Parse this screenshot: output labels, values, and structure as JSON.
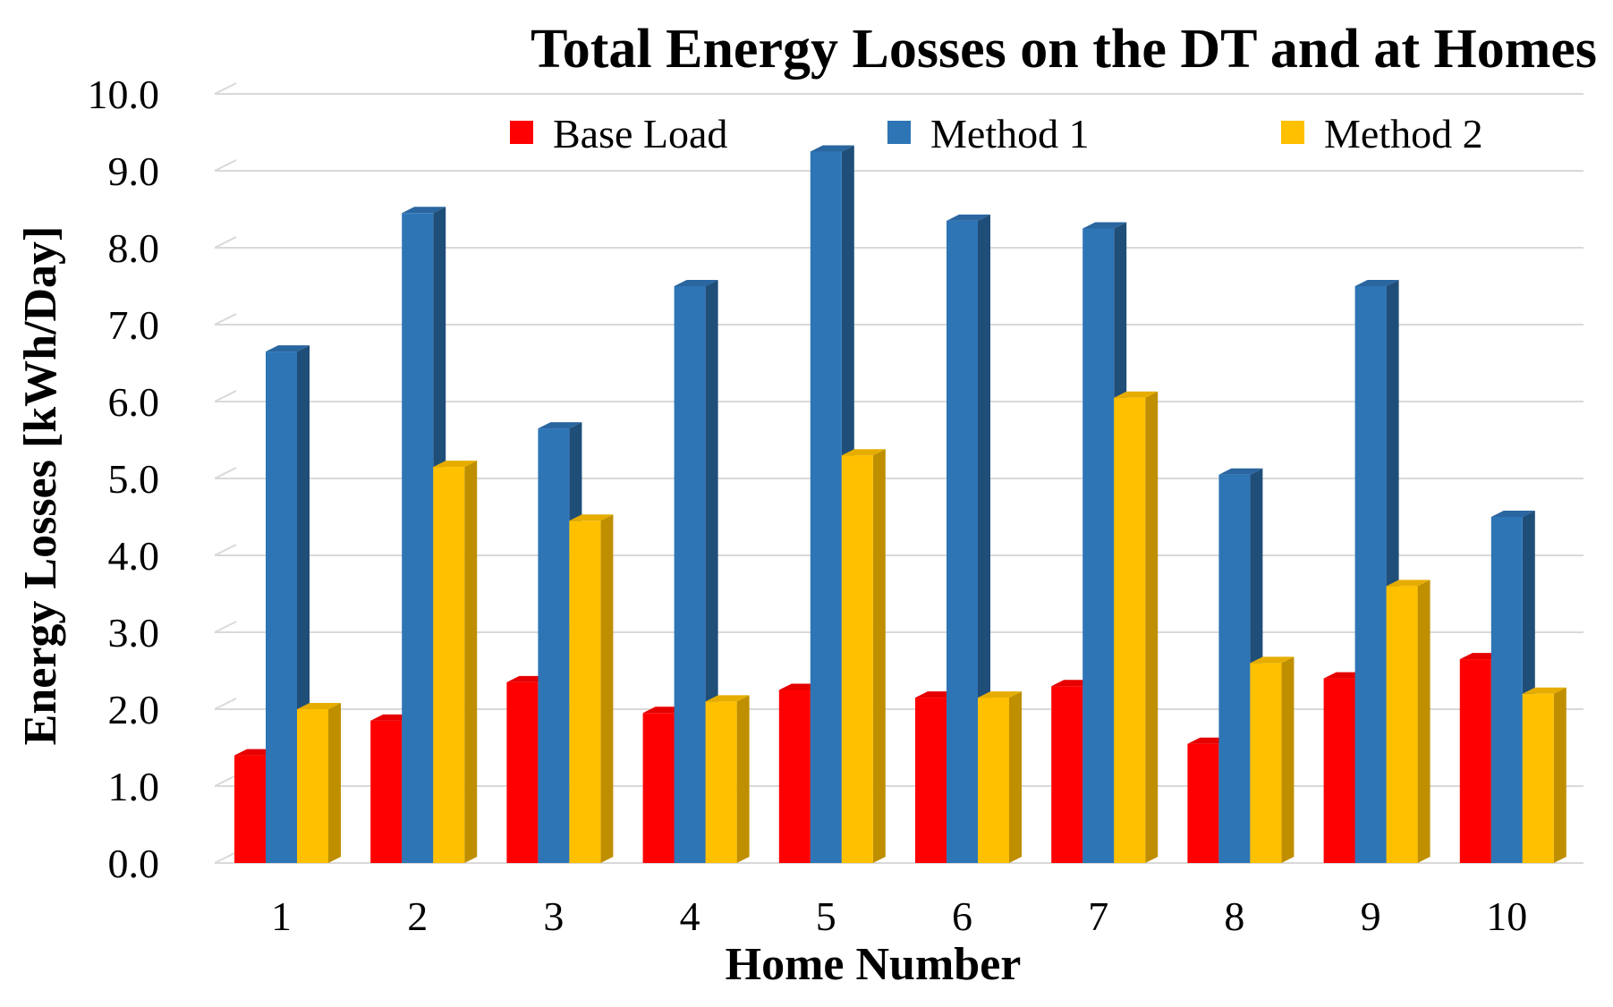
{
  "chart_data": {
    "type": "bar",
    "title": "Total Energy Losses on the DT and at Homes",
    "xlabel": "Home Number",
    "ylabel": "Energy Losses [kWh/Day]",
    "ylim": [
      0,
      10
    ],
    "yticks": [
      "0.0",
      "1.0",
      "2.0",
      "3.0",
      "4.0",
      "5.0",
      "6.0",
      "7.0",
      "8.0",
      "9.0",
      "10.0"
    ],
    "grid": true,
    "legend_position": "top",
    "categories": [
      "1",
      "2",
      "3",
      "4",
      "5",
      "6",
      "7",
      "8",
      "9",
      "10"
    ],
    "series": [
      {
        "name": "Base Load",
        "color": "#ff0000",
        "side_color": "#b30000",
        "top_color": "#e60000",
        "values": [
          1.4,
          1.85,
          2.35,
          1.95,
          2.25,
          2.15,
          2.3,
          1.55,
          2.4,
          2.65
        ]
      },
      {
        "name": "Method 1",
        "color": "#2e75b6",
        "side_color": "#1f4e79",
        "top_color": "#2a66a0",
        "values": [
          6.65,
          8.45,
          5.65,
          7.5,
          9.25,
          8.35,
          8.25,
          5.05,
          7.5,
          4.5
        ]
      },
      {
        "name": "Method 2",
        "color": "#ffc000",
        "side_color": "#bf8f00",
        "top_color": "#e6ad00",
        "values": [
          2.0,
          5.15,
          4.45,
          2.1,
          5.3,
          2.15,
          6.05,
          2.6,
          3.6,
          2.2
        ]
      }
    ]
  }
}
